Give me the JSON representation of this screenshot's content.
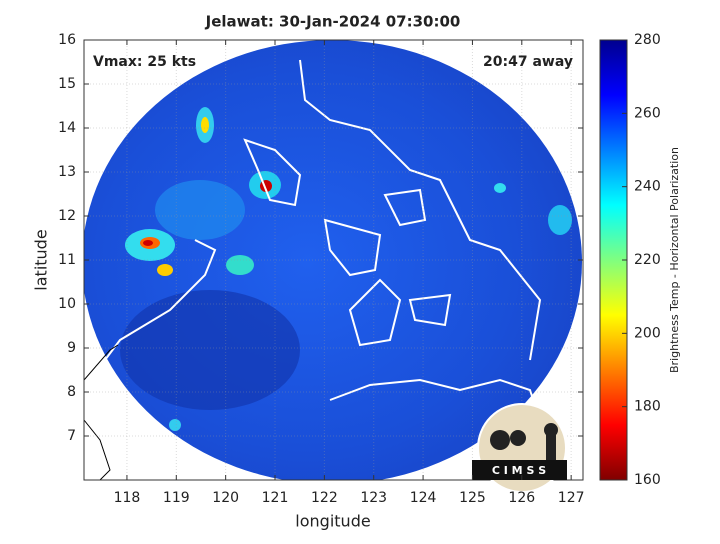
{
  "chart_data": {
    "type": "map",
    "title": "Jelawat: 30-Jan-2024 07:30:00",
    "annotations": [
      "Vmax: 25 kts",
      "20:47 away"
    ],
    "xlabel": "longitude",
    "ylabel": "latitude",
    "xlim": [
      117.13,
      127.24
    ],
    "ylim": [
      6,
      16
    ],
    "xticks": [
      118,
      119,
      120,
      121,
      122,
      123,
      124,
      125,
      126,
      127
    ],
    "yticks": [
      7,
      8,
      9,
      10,
      11,
      12,
      13,
      14,
      15,
      16
    ],
    "grid": true,
    "colorbar": {
      "label": "Brightness Temp - Horizontal Polarization",
      "lim": [
        160,
        280
      ],
      "ticks": [
        160,
        180,
        200,
        220,
        240,
        260,
        280
      ]
    },
    "logo_text": "C I M S S"
  }
}
